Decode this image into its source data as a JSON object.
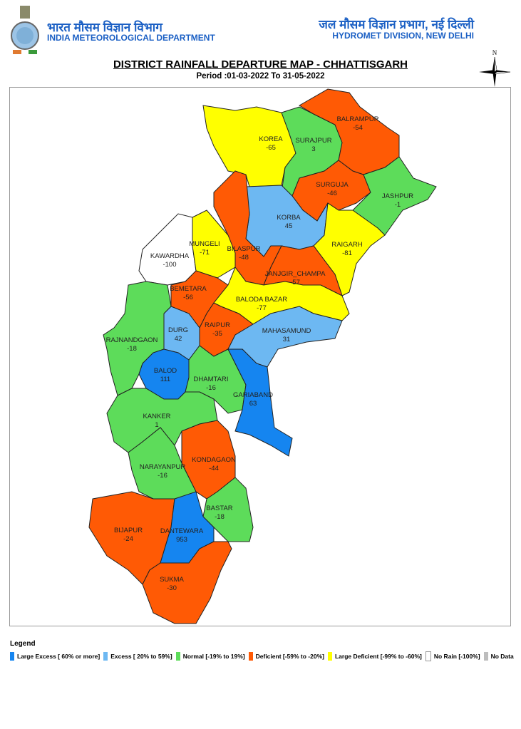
{
  "header": {
    "hindi_left": "भारत मौसम विज्ञान विभाग",
    "org_left": "INDIA METEOROLOGICAL DEPARTMENT",
    "hindi_right": "जल मौसम विज्ञान प्रभाग, नई दिल्ली",
    "org_right": "HYDROMET DIVISION, NEW DELHI",
    "emblem": "imd-emblem"
  },
  "map": {
    "title": "DISTRICT RAINFALL DEPARTURE MAP - CHHATTISGARH",
    "period": "Period :01-03-2022 To 31-05-2022",
    "north_label": "N",
    "districts": [
      {
        "name": "KOREA",
        "value": "-65",
        "category": "large_deficient"
      },
      {
        "name": "SURAJPUR",
        "value": "3",
        "category": "normal"
      },
      {
        "name": "BALRAMPUR",
        "value": "-54",
        "category": "deficient"
      },
      {
        "name": "SURGUJA",
        "value": "-46",
        "category": "deficient"
      },
      {
        "name": "JASHPUR",
        "value": "-1",
        "category": "normal"
      },
      {
        "name": "KORBA",
        "value": "45",
        "category": "excess"
      },
      {
        "name": "RAIGARH",
        "value": "-81",
        "category": "large_deficient"
      },
      {
        "name": "KAWARDHA",
        "value": "-100",
        "category": "no_rain"
      },
      {
        "name": "MUNGELI",
        "value": "-71",
        "category": "large_deficient"
      },
      {
        "name": "BILASPUR",
        "value": "-48",
        "category": "deficient"
      },
      {
        "name": "JANJGIR_CHAMPA",
        "value": "-57",
        "category": "deficient"
      },
      {
        "name": "BEMETARA",
        "value": "-56",
        "category": "deficient"
      },
      {
        "name": "BALODA BAZAR",
        "value": "-77",
        "category": "large_deficient"
      },
      {
        "name": "RAIPUR",
        "value": "-35",
        "category": "deficient"
      },
      {
        "name": "MAHASAMUND",
        "value": "31",
        "category": "excess"
      },
      {
        "name": "DURG",
        "value": "42",
        "category": "excess"
      },
      {
        "name": "RAJNANDGAON",
        "value": "-18",
        "category": "normal"
      },
      {
        "name": "BALOD",
        "value": "111",
        "category": "large_excess"
      },
      {
        "name": "DHAMTARI",
        "value": "-16",
        "category": "normal"
      },
      {
        "name": "GARIABAND",
        "value": "63",
        "category": "large_excess"
      },
      {
        "name": "KANKER",
        "value": "1",
        "category": "normal"
      },
      {
        "name": "KONDAGAON",
        "value": "-44",
        "category": "deficient"
      },
      {
        "name": "NARAYANPUR",
        "value": "-16",
        "category": "normal"
      },
      {
        "name": "BASTAR",
        "value": "-18",
        "category": "normal"
      },
      {
        "name": "BIJAPUR",
        "value": "-24",
        "category": "deficient"
      },
      {
        "name": "DANTEWARA",
        "value": "953",
        "category": "large_excess"
      },
      {
        "name": "SUKMA",
        "value": "-30",
        "category": "deficient"
      }
    ]
  },
  "legend": {
    "title": "Legend",
    "items": [
      {
        "key": "large_excess",
        "label": "Large Excess [ 60% or more]",
        "color": "#1585f0"
      },
      {
        "key": "excess",
        "label": "Excess [ 20% to 59%]",
        "color": "#6db8f2"
      },
      {
        "key": "normal",
        "label": "Normal [-19% to 19%]",
        "color": "#5ddc5a"
      },
      {
        "key": "deficient",
        "label": "Deficient [-59% to -20%]",
        "color": "#ff5a05"
      },
      {
        "key": "large_deficient",
        "label": "Large Deficient [-99% to -60%]",
        "color": "#ffff00"
      },
      {
        "key": "no_rain",
        "label": "No Rain  [-100%]",
        "color": "#ffffff"
      },
      {
        "key": "no_data",
        "label": "No Data",
        "color": "#bdbdbd"
      }
    ]
  }
}
